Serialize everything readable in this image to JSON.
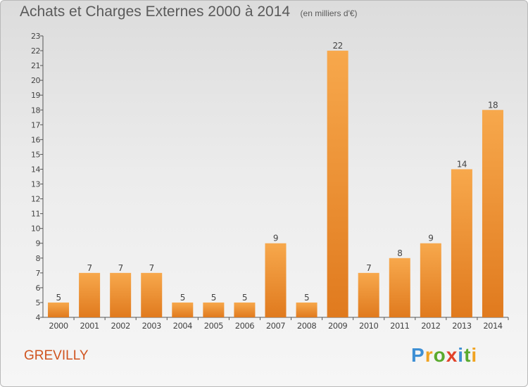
{
  "title": "Achats et Charges Externes 2000 à 2014",
  "unit_note": "(en milliers d'€)",
  "commune": "GREVILLY",
  "logo": {
    "text": "Proxiti",
    "letters": [
      "P",
      "r",
      "o",
      "x",
      "i",
      "t",
      "i"
    ],
    "colors": [
      "#3d8fd4",
      "#f0a321",
      "#5aaa2e",
      "#e2432a",
      "#3d8fd4",
      "#5aaa2e",
      "#f0a321"
    ]
  },
  "colors": {
    "bar_light": "#f7a84c",
    "bar_dark": "#e07a1e",
    "accent": "#d0541f"
  },
  "chart_data": {
    "type": "bar",
    "title": "Achats et Charges Externes 2000 à 2014",
    "subtitle": "(en milliers d'€)",
    "xlabel": "",
    "ylabel": "",
    "categories": [
      "2000",
      "2001",
      "2002",
      "2003",
      "2004",
      "2005",
      "2006",
      "2007",
      "2008",
      "2009",
      "2010",
      "2011",
      "2012",
      "2013",
      "2014"
    ],
    "values": [
      5,
      7,
      7,
      7,
      5,
      5,
      5,
      9,
      5,
      22,
      7,
      8,
      9,
      14,
      18
    ],
    "ylim": [
      4,
      23
    ],
    "yticks": [
      "4",
      "5",
      "6",
      "7",
      "8",
      "9",
      "10",
      "11",
      "12",
      "13",
      "14",
      "15",
      "16",
      "17",
      "18",
      "19",
      "20",
      "21",
      "22",
      "23"
    ],
    "grid": false,
    "legend": "none"
  }
}
